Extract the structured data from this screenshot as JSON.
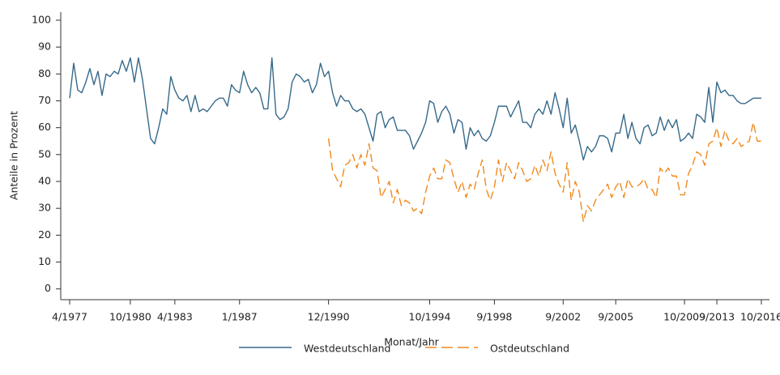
{
  "chart_data": {
    "type": "line",
    "y_label": "Anteile in Prozent",
    "x_label": "Monat/Jahr",
    "categories": [
      "4/1977",
      null,
      null,
      null,
      null,
      null,
      null,
      null,
      null,
      null,
      null,
      null,
      null,
      null,
      null,
      "10/1980",
      null,
      null,
      null,
      null,
      null,
      null,
      null,
      null,
      null,
      null,
      "4/1983",
      null,
      null,
      null,
      null,
      null,
      null,
      null,
      null,
      null,
      null,
      null,
      null,
      null,
      null,
      null,
      "1/1987",
      null,
      null,
      null,
      null,
      null,
      null,
      null,
      null,
      null,
      null,
      null,
      null,
      null,
      null,
      null,
      null,
      null,
      null,
      null,
      null,
      null,
      "12/1990",
      null,
      null,
      null,
      null,
      null,
      null,
      null,
      null,
      null,
      null,
      null,
      null,
      null,
      null,
      null,
      null,
      null,
      null,
      null,
      null,
      null,
      null,
      null,
      null,
      "10/1994",
      null,
      null,
      null,
      null,
      null,
      null,
      null,
      null,
      null,
      null,
      null,
      null,
      null,
      null,
      null,
      "9/1998",
      null,
      null,
      null,
      null,
      null,
      null,
      null,
      null,
      null,
      null,
      null,
      null,
      null,
      null,
      null,
      null,
      "9/2002",
      null,
      null,
      null,
      null,
      null,
      null,
      null,
      null,
      null,
      null,
      null,
      null,
      "9/2005",
      null,
      null,
      null,
      null,
      null,
      null,
      null,
      null,
      null,
      null,
      null,
      null,
      null,
      null,
      null,
      null,
      "10/2009",
      null,
      null,
      null,
      null,
      null,
      null,
      null,
      "9/2013",
      null,
      null,
      null,
      null,
      null,
      null,
      null,
      null,
      null,
      null,
      "10/2016"
    ],
    "series": [
      {
        "name": "Westdeutschland",
        "color": "#36698a",
        "dashed": false,
        "values": [
          71,
          84,
          74,
          73,
          77,
          82,
          76,
          81,
          72,
          80,
          79,
          81,
          80,
          85,
          81,
          86,
          77,
          86,
          78,
          67,
          56,
          54,
          60,
          67,
          65,
          79,
          74,
          71,
          70,
          72,
          66,
          72,
          66,
          67,
          66,
          68,
          70,
          71,
          71,
          68,
          76,
          74,
          73,
          81,
          76,
          73,
          75,
          73,
          67,
          67,
          86,
          65,
          63,
          64,
          67,
          77,
          80,
          79,
          77,
          78,
          73,
          76,
          84,
          79,
          81,
          73,
          68,
          72,
          70,
          70,
          67,
          66,
          67,
          65,
          60,
          55,
          65,
          66,
          60,
          63,
          64,
          59,
          59,
          59,
          57,
          52,
          55,
          58,
          62,
          70,
          69,
          62,
          66,
          68,
          65,
          58,
          63,
          62,
          52,
          60,
          57,
          59,
          56,
          55,
          57,
          62,
          68,
          68,
          68,
          64,
          67,
          70,
          62,
          62,
          60,
          65,
          67,
          65,
          70,
          65,
          73,
          67,
          60,
          71,
          58,
          61,
          55,
          48,
          53,
          51,
          53,
          57,
          57,
          56,
          51,
          58,
          58,
          65,
          56,
          62,
          56,
          54,
          60,
          61,
          57,
          58,
          64,
          59,
          63,
          60,
          63,
          55,
          56,
          58,
          56,
          65,
          64,
          62,
          75,
          62,
          77,
          73,
          74,
          72,
          72,
          70,
          69,
          69,
          70,
          71,
          71,
          71
        ]
      },
      {
        "name": "Ostdeutschland",
        "color": "#f08a1e",
        "dashed": true,
        "values": [
          null,
          null,
          null,
          null,
          null,
          null,
          null,
          null,
          null,
          null,
          null,
          null,
          null,
          null,
          null,
          null,
          null,
          null,
          null,
          null,
          null,
          null,
          null,
          null,
          null,
          null,
          null,
          null,
          null,
          null,
          null,
          null,
          null,
          null,
          null,
          null,
          null,
          null,
          null,
          null,
          null,
          null,
          null,
          null,
          null,
          null,
          null,
          null,
          null,
          null,
          null,
          null,
          null,
          null,
          null,
          null,
          null,
          null,
          null,
          null,
          null,
          null,
          null,
          null,
          56,
          44,
          41,
          38,
          46,
          47,
          50,
          45,
          50,
          46,
          54,
          45,
          44,
          34,
          37,
          40,
          32,
          37,
          31,
          33,
          32,
          29,
          30,
          28,
          36,
          42,
          45,
          41,
          41,
          48,
          47,
          41,
          36,
          40,
          34,
          39,
          37,
          43,
          48,
          37,
          33,
          38,
          48,
          40,
          47,
          44,
          41,
          47,
          44,
          40,
          41,
          46,
          42,
          48,
          44,
          51,
          43,
          39,
          36,
          47,
          33,
          40,
          36,
          25,
          31,
          29,
          33,
          35,
          37,
          39,
          34,
          38,
          40,
          34,
          41,
          38,
          38,
          39,
          41,
          37,
          37,
          34,
          45,
          43,
          45,
          42,
          42,
          35,
          35,
          43,
          46,
          51,
          50,
          46,
          54,
          55,
          60,
          53,
          59,
          55,
          54,
          56,
          53,
          54,
          55,
          62,
          55,
          55
        ]
      }
    ],
    "ylim": [
      -4,
      103
    ],
    "yticks": [
      0,
      10,
      20,
      30,
      40,
      50,
      60,
      70,
      80,
      90,
      100
    ],
    "grid": false,
    "legend": "bottom"
  }
}
